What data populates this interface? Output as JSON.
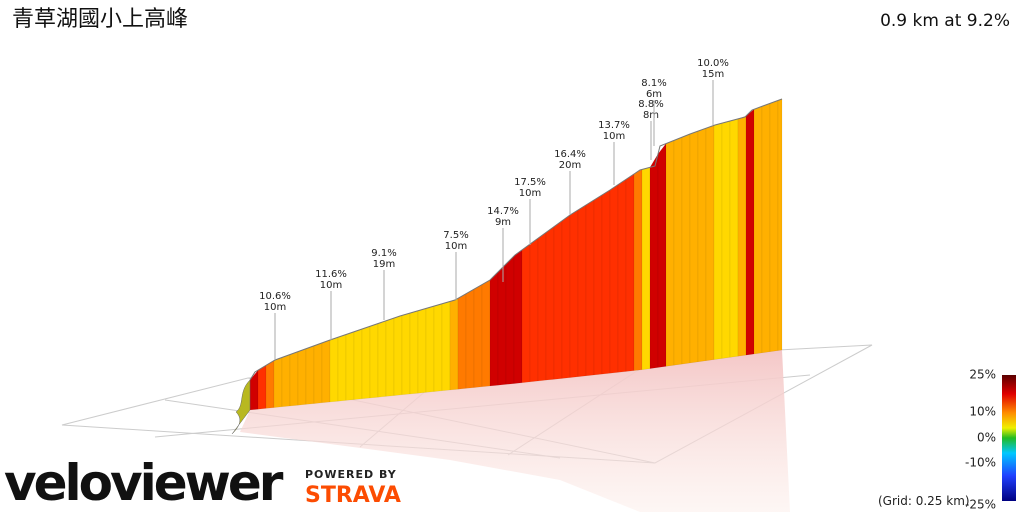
{
  "title": "青草湖國小上高峰",
  "summary": "0.9 km at 9.2%",
  "annotations": [
    {
      "grade": "10.6%",
      "gain": "10m"
    },
    {
      "grade": "11.6%",
      "gain": "10m"
    },
    {
      "grade": "9.1%",
      "gain": "19m"
    },
    {
      "grade": "7.5%",
      "gain": "10m"
    },
    {
      "grade": "14.7%",
      "gain": "9m"
    },
    {
      "grade": "17.5%",
      "gain": "10m"
    },
    {
      "grade": "16.4%",
      "gain": "20m"
    },
    {
      "grade": "13.7%",
      "gain": "10m"
    },
    {
      "grade": "8.8%",
      "gain": "8m"
    },
    {
      "grade": "8.1%",
      "gain": "6m"
    },
    {
      "grade": "10.0%",
      "gain": "15m"
    }
  ],
  "legend": {
    "ticks": [
      "25%",
      "10%",
      "0%",
      "-10%",
      "-25%"
    ],
    "grid_note": "(Grid: 0.25 km)"
  },
  "brand": {
    "name": "veloviewer",
    "powered_by": "POWERED BY",
    "partner": "STRAVA"
  }
}
